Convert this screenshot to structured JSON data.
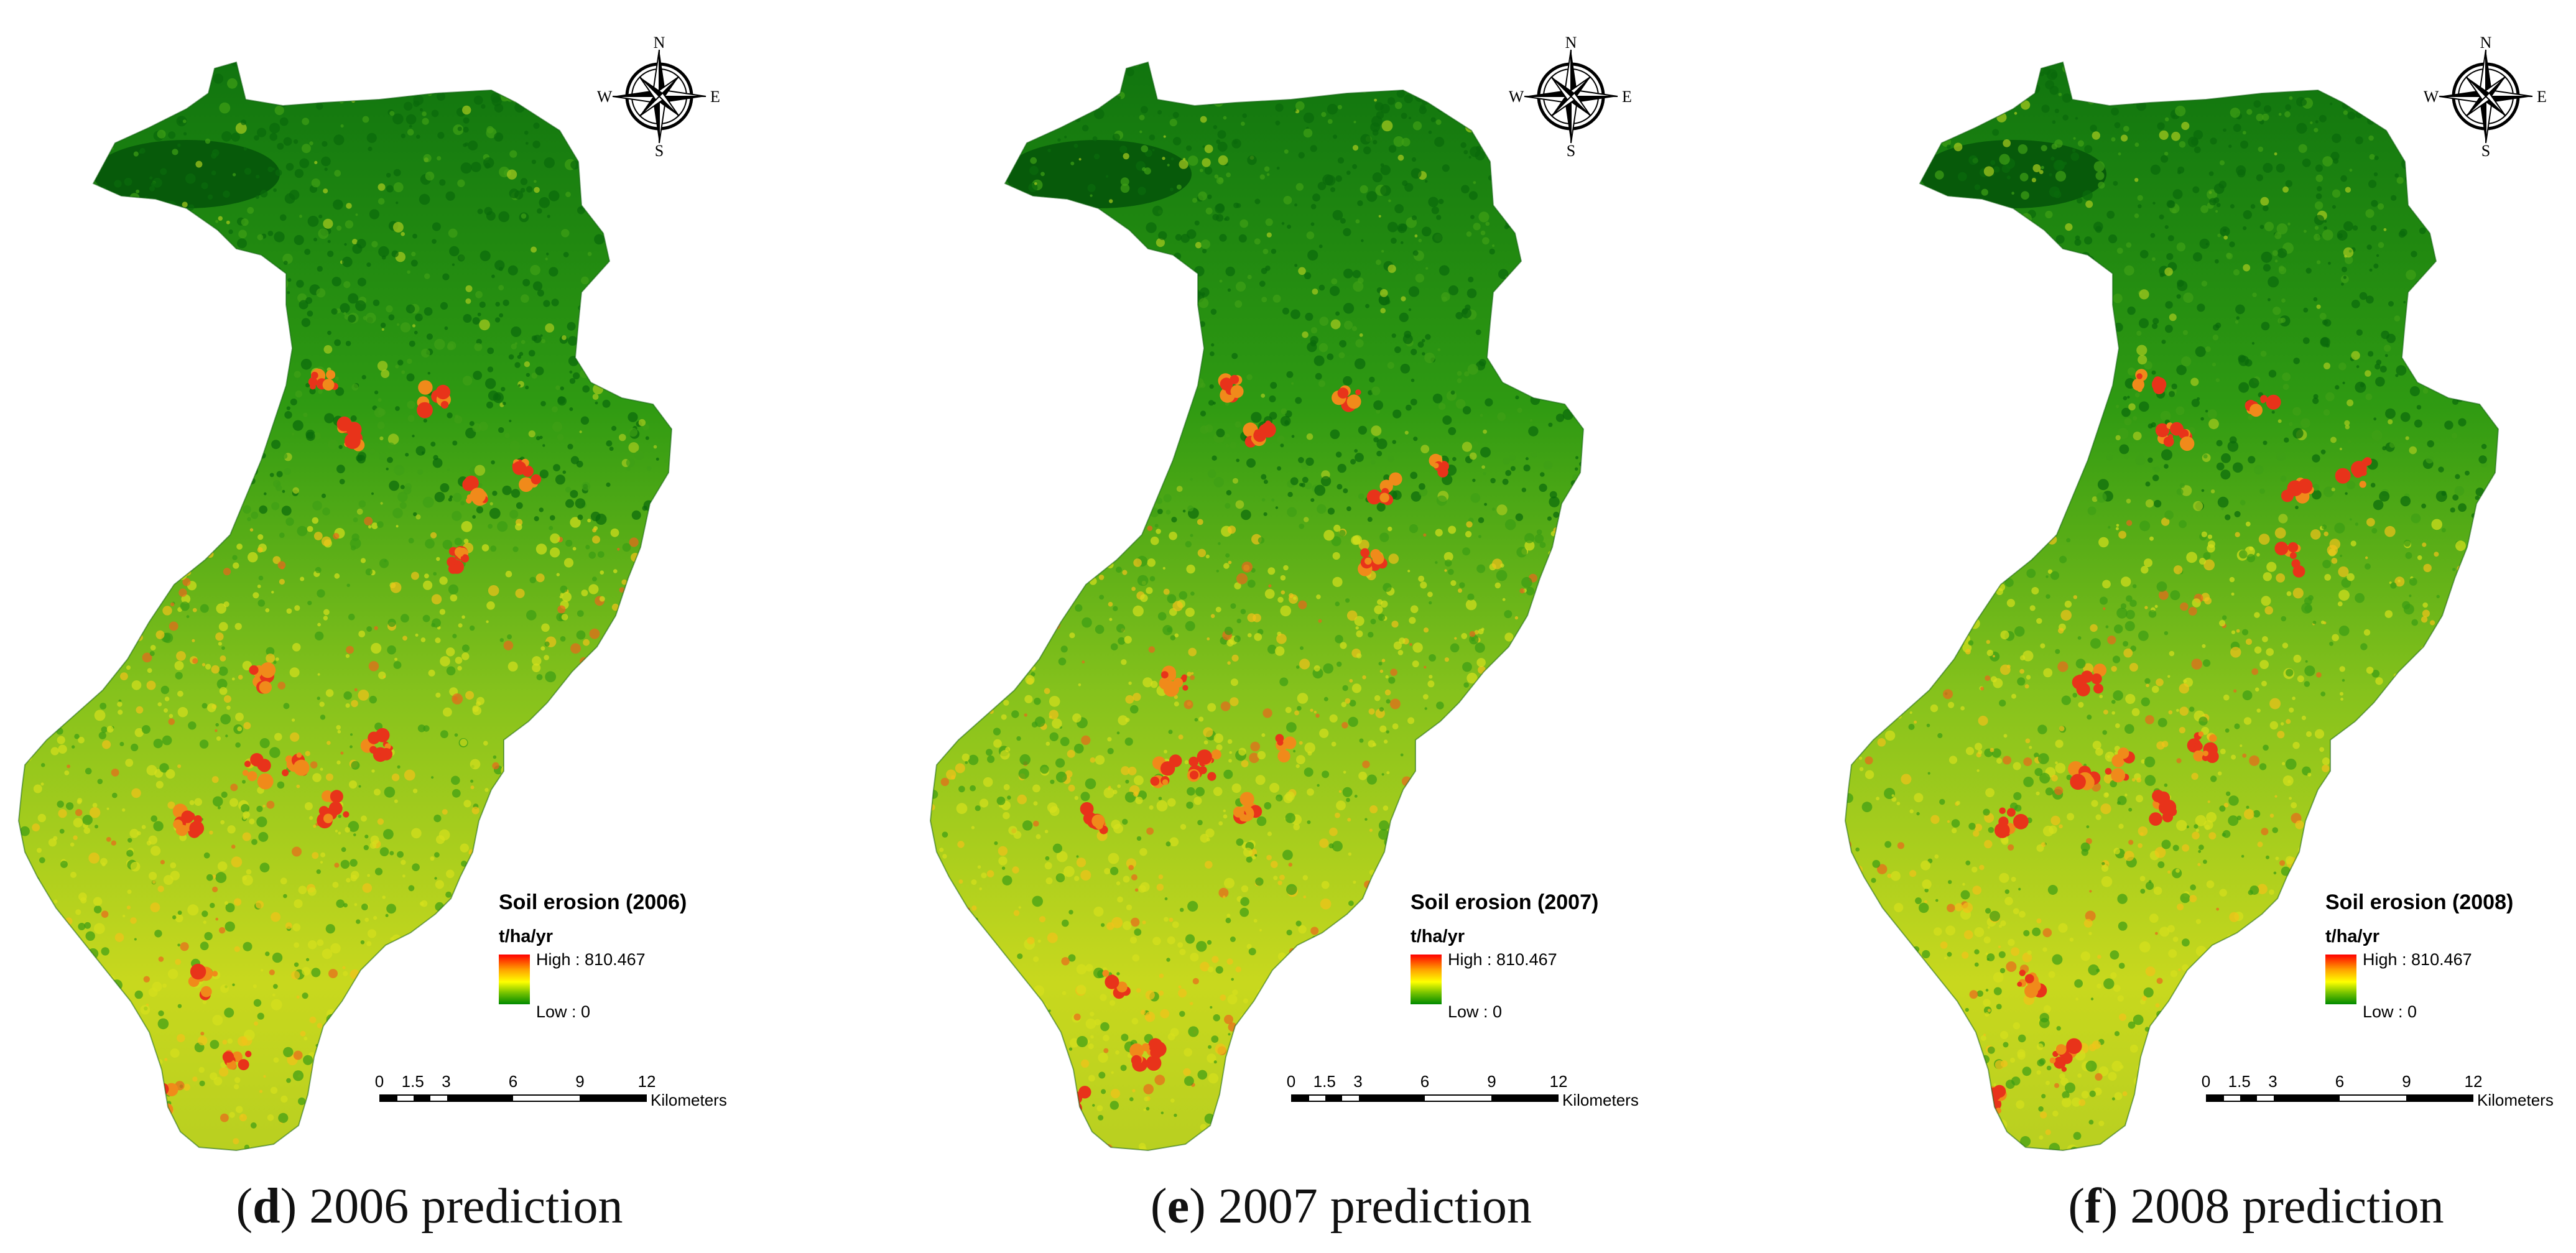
{
  "panels": [
    {
      "id": "d",
      "letter": "d",
      "caption_text": ") 2006 prediction",
      "legend_title": "Soil erosion (2006)"
    },
    {
      "id": "e",
      "letter": "e",
      "caption_text": ") 2007 prediction",
      "legend_title": "Soil erosion (2007)"
    },
    {
      "id": "f",
      "letter": "f",
      "caption_text": ") 2008 prediction",
      "legend_title": "Soil erosion (2008)"
    }
  ],
  "legend": {
    "unit": "t/ha/yr",
    "high_label": "High : 810.467",
    "low_label": "Low : 0",
    "high_value": 810.467,
    "low_value": 0,
    "colors": {
      "high": "#ff0000",
      "mid": "#ffff00",
      "low": "#008a00"
    }
  },
  "scale": {
    "ticks": [
      "0",
      "1.5",
      "3",
      "6",
      "9",
      "12"
    ],
    "unit": "Kilometers"
  },
  "compass": {
    "n": "N",
    "s": "S",
    "e": "E",
    "w": "W"
  },
  "icons": {
    "compass": "north-arrow-compass-icon",
    "scale": "scale-bar-icon"
  }
}
